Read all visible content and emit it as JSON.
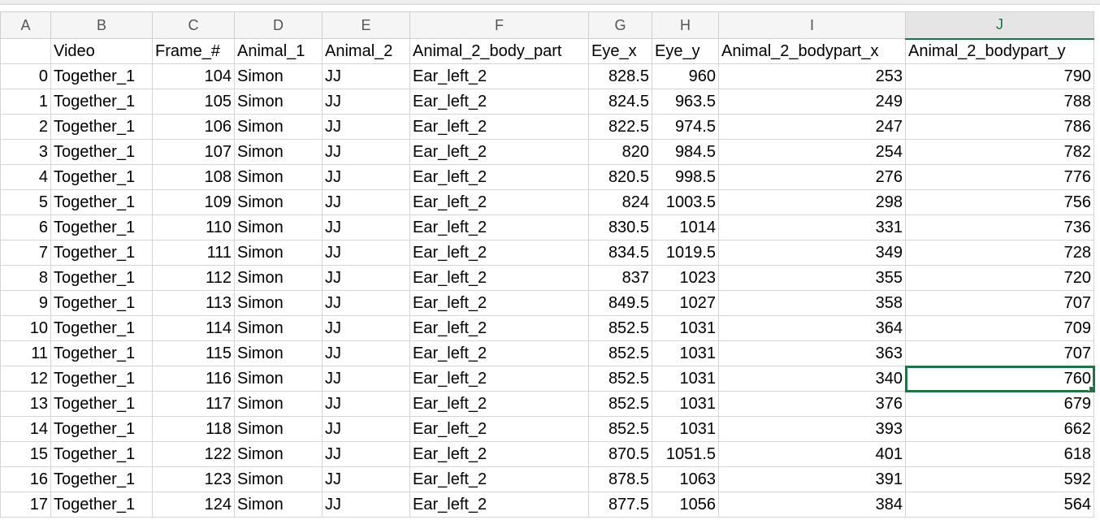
{
  "columns": [
    "A",
    "B",
    "C",
    "D",
    "E",
    "F",
    "G",
    "H",
    "I",
    "J"
  ],
  "selected_column": "J",
  "header_row": [
    "",
    "Video",
    "Frame_#",
    "Animal_1",
    "Animal_2",
    "Animal_2_body_part",
    "Eye_x",
    "Eye_y",
    "Animal_2_bodypart_x",
    "Animal_2_bodypart_y"
  ],
  "rows": [
    [
      "0",
      "Together_1",
      "104",
      "Simon",
      "JJ",
      "Ear_left_2",
      "828.5",
      "960",
      "253",
      "790"
    ],
    [
      "1",
      "Together_1",
      "105",
      "Simon",
      "JJ",
      "Ear_left_2",
      "824.5",
      "963.5",
      "249",
      "788"
    ],
    [
      "2",
      "Together_1",
      "106",
      "Simon",
      "JJ",
      "Ear_left_2",
      "822.5",
      "974.5",
      "247",
      "786"
    ],
    [
      "3",
      "Together_1",
      "107",
      "Simon",
      "JJ",
      "Ear_left_2",
      "820",
      "984.5",
      "254",
      "782"
    ],
    [
      "4",
      "Together_1",
      "108",
      "Simon",
      "JJ",
      "Ear_left_2",
      "820.5",
      "998.5",
      "276",
      "776"
    ],
    [
      "5",
      "Together_1",
      "109",
      "Simon",
      "JJ",
      "Ear_left_2",
      "824",
      "1003.5",
      "298",
      "756"
    ],
    [
      "6",
      "Together_1",
      "110",
      "Simon",
      "JJ",
      "Ear_left_2",
      "830.5",
      "1014",
      "331",
      "736"
    ],
    [
      "7",
      "Together_1",
      "111",
      "Simon",
      "JJ",
      "Ear_left_2",
      "834.5",
      "1019.5",
      "349",
      "728"
    ],
    [
      "8",
      "Together_1",
      "112",
      "Simon",
      "JJ",
      "Ear_left_2",
      "837",
      "1023",
      "355",
      "720"
    ],
    [
      "9",
      "Together_1",
      "113",
      "Simon",
      "JJ",
      "Ear_left_2",
      "849.5",
      "1027",
      "358",
      "707"
    ],
    [
      "10",
      "Together_1",
      "114",
      "Simon",
      "JJ",
      "Ear_left_2",
      "852.5",
      "1031",
      "364",
      "709"
    ],
    [
      "11",
      "Together_1",
      "115",
      "Simon",
      "JJ",
      "Ear_left_2",
      "852.5",
      "1031",
      "363",
      "707"
    ],
    [
      "12",
      "Together_1",
      "116",
      "Simon",
      "JJ",
      "Ear_left_2",
      "852.5",
      "1031",
      "340",
      "760"
    ],
    [
      "13",
      "Together_1",
      "117",
      "Simon",
      "JJ",
      "Ear_left_2",
      "852.5",
      "1031",
      "376",
      "679"
    ],
    [
      "14",
      "Together_1",
      "118",
      "Simon",
      "JJ",
      "Ear_left_2",
      "852.5",
      "1031",
      "393",
      "662"
    ],
    [
      "15",
      "Together_1",
      "122",
      "Simon",
      "JJ",
      "Ear_left_2",
      "870.5",
      "1051.5",
      "401",
      "618"
    ],
    [
      "16",
      "Together_1",
      "123",
      "Simon",
      "JJ",
      "Ear_left_2",
      "878.5",
      "1063",
      "391",
      "592"
    ],
    [
      "17",
      "Together_1",
      "124",
      "Simon",
      "JJ",
      "Ear_left_2",
      "877.5",
      "1056",
      "384",
      "564"
    ]
  ],
  "active_cell": {
    "row": 12,
    "col": 9
  },
  "accent_color": "#217346"
}
